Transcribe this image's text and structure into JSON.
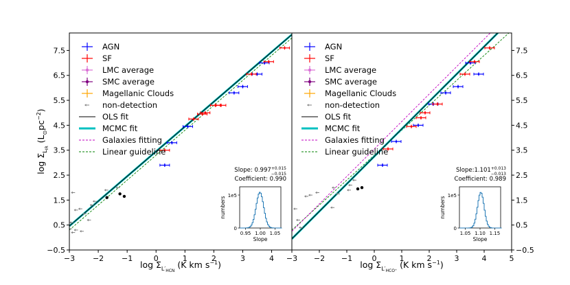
{
  "chart_data": [
    {
      "type": "scatter",
      "xlabel_main": "log Σ",
      "xlabel_sub": "L′",
      "xlabel_subsub": "HCN",
      "xlabel_unit": " (K km s",
      "xlabel_exp": "−1",
      "xlabel_close": ")",
      "ylabel_main": "log Σ",
      "ylabel_sub": "L",
      "ylabel_subsub": "IR",
      "ylabel_unit": " (L",
      "ylabel_sun": "⊙",
      "ylabel_pc": "pc",
      "ylabel_exp": "−2",
      "ylabel_close": ")",
      "xlim": [
        -3,
        4.7
      ],
      "ylim": [
        -0.5,
        8.2
      ],
      "xticks": [
        "−3",
        "−2",
        "−1",
        "0",
        "1",
        "2",
        "3",
        "4"
      ],
      "yticks": [
        "−0.5",
        "0.5",
        "1.5",
        "2.5",
        "3.5",
        "4.5",
        "5.5",
        "6.5",
        "7.5"
      ],
      "legend": [
        "AGN",
        "SF",
        "LMC average",
        "SMC average",
        "Magellanic Clouds",
        "non-detection",
        "OLS fit",
        "MCMC fit",
        "Galaxies fitting",
        "Linear guideline"
      ],
      "colors": {
        "AGN": "#0000ff",
        "SF": "#ff0000",
        "LMC": "#da70d6",
        "SMC": "#800080",
        "MC": "#ffa500",
        "nondet": "#808080",
        "ols": "#000000",
        "mcmc": "#00c0c0",
        "gal": "#c000c0",
        "guide": "#008000"
      },
      "ols": {
        "slope": 0.997,
        "intercept": 3.45
      },
      "mcmc": {
        "slope": 0.997,
        "intercept": 3.45
      },
      "guide": {
        "slope": 1.0,
        "intercept": 3.3
      },
      "agn": [
        [
          0.3,
          2.9
        ],
        [
          0.55,
          3.8
        ],
        [
          1.1,
          4.45
        ],
        [
          2.7,
          5.8
        ],
        [
          3.0,
          6.05
        ],
        [
          3.5,
          6.55
        ],
        [
          3.75,
          7.0
        ]
      ],
      "sf": [
        [
          0.3,
          3.5
        ],
        [
          1.3,
          4.75
        ],
        [
          1.6,
          4.95
        ],
        [
          1.7,
          5.0
        ],
        [
          2.05,
          5.3
        ],
        [
          2.25,
          5.3
        ],
        [
          3.3,
          6.55
        ],
        [
          3.9,
          7.05
        ],
        [
          4.45,
          7.6
        ]
      ],
      "lmc": [
        [
          -1.7,
          1.6
        ],
        [
          -1.25,
          1.75
        ]
      ],
      "smc": [
        [
          -1.1,
          1.65
        ]
      ],
      "mc": [
        [
          -1.9,
          1.9
        ],
        [
          -2.0,
          1.45
        ],
        [
          -1.15,
          1.85
        ],
        [
          -2.35,
          1.4
        ],
        [
          -1.05,
          1.85
        ],
        [
          -1.25,
          1.95
        ]
      ],
      "nondet": [
        [
          -2.85,
          1.8
        ],
        [
          -2.75,
          1.1
        ],
        [
          -2.6,
          1.15
        ],
        [
          -2.95,
          0.35
        ],
        [
          -2.75,
          0.3
        ],
        [
          -2.55,
          0.25
        ],
        [
          -2.3,
          0.7
        ],
        [
          -2.45,
          0.95
        ],
        [
          -2.2,
          1.3
        ],
        [
          -2.1,
          1.45
        ],
        [
          -1.3,
          2.0
        ],
        [
          -1.7,
          1.9
        ],
        [
          -2.9,
          0.6
        ],
        [
          -2.85,
          0.2
        ]
      ],
      "inset": {
        "slope_label": "Slope: 0.997",
        "slope_sup": "+0.015",
        "slope_sub": "−0.015",
        "coef_label": "Coefficient: 0.990",
        "ylabel": "numbers",
        "xlabel": "Slope",
        "yticks": [
          "0",
          "1e5"
        ],
        "xticks": [
          "0.95",
          "1.00",
          "1.05"
        ],
        "xlim": [
          0.93,
          1.07
        ],
        "peak": 0.997,
        "sigma": 0.015
      }
    },
    {
      "type": "scatter",
      "xlabel_main": "log Σ",
      "xlabel_sub": "L′",
      "xlabel_subsub": "HCO⁺",
      "xlabel_unit": " (K km s",
      "xlabel_exp": "−1",
      "xlabel_close": ")",
      "xlim": [
        -3,
        5
      ],
      "ylim": [
        -0.5,
        8.2
      ],
      "xticks": [
        "−3",
        "−2",
        "−1",
        "0",
        "1",
        "2",
        "3",
        "4",
        "5"
      ],
      "yticks": [
        "−0.5",
        "0.5",
        "1.5",
        "2.5",
        "3.5",
        "4.5",
        "5.5",
        "6.5",
        "7.5"
      ],
      "legend": [
        "AGN",
        "SF",
        "LMC average",
        "SMC average",
        "Magellanic Clouds",
        "non-detection",
        "OLS fit",
        "MCMC fit",
        "Galaxies fitting",
        "Linear guideline"
      ],
      "ols": {
        "slope": 1.101,
        "intercept": 3.25
      },
      "mcmc": {
        "slope": 1.101,
        "intercept": 3.25
      },
      "gal": {
        "slope": 1.101,
        "intercept": 3.55
      },
      "guide": {
        "slope": 1.0,
        "intercept": 3.3
      },
      "agn": [
        [
          0.3,
          2.9
        ],
        [
          0.8,
          3.85
        ],
        [
          1.6,
          4.5
        ],
        [
          2.15,
          5.35
        ],
        [
          2.6,
          5.8
        ],
        [
          3.05,
          6.05
        ],
        [
          3.5,
          7.0
        ],
        [
          3.8,
          6.55
        ]
      ],
      "sf": [
        [
          0.5,
          3.55
        ],
        [
          1.35,
          4.45
        ],
        [
          1.7,
          4.8
        ],
        [
          1.85,
          5.0
        ],
        [
          2.3,
          5.35
        ],
        [
          3.3,
          6.55
        ],
        [
          3.65,
          7.05
        ],
        [
          4.2,
          7.6
        ]
      ],
      "lmc": [
        [
          -0.6,
          1.95
        ]
      ],
      "smc": [
        [
          -0.45,
          2.0
        ]
      ],
      "mc": [
        [
          -2.1,
          1.8
        ],
        [
          -2.1,
          1.4
        ],
        [
          -1.55,
          1.45
        ],
        [
          -1.4,
          0.95
        ],
        [
          -0.8,
          1.5
        ],
        [
          -0.9,
          2.0
        ],
        [
          -0.65,
          1.0
        ],
        [
          -0.75,
          1.75
        ],
        [
          -0.35,
          2.15
        ],
        [
          -0.45,
          1.9
        ],
        [
          -1.85,
          1.05
        ],
        [
          -2.6,
          0.35
        ],
        [
          -2.3,
          0.15
        ],
        [
          -1.9,
          0.1
        ],
        [
          -2.8,
          0.45
        ],
        [
          -1.2,
          0.75
        ]
      ],
      "nondet": [
        [
          -2.85,
          1.15
        ],
        [
          -2.75,
          0.7
        ],
        [
          -2.65,
          0.4
        ],
        [
          -2.45,
          1.65
        ],
        [
          -2.3,
          1.7
        ],
        [
          -2.05,
          1.8
        ],
        [
          -1.5,
          1.2
        ],
        [
          -1.45,
          2.0
        ],
        [
          -1.3,
          1.75
        ],
        [
          -0.85,
          2.1
        ],
        [
          -0.7,
          2.3
        ],
        [
          -0.9,
          1.9
        ]
      ],
      "inset": {
        "slope_label": "Slope:1.101",
        "slope_sup": "+0.013",
        "slope_sub": "−0.013",
        "coef_label": "Coefficient: 0.989",
        "ylabel": "numbers",
        "xlabel": "Slope",
        "yticks": [
          "0",
          "1e5"
        ],
        "xticks": [
          "1.05",
          "1.10",
          "1.15"
        ],
        "xlim": [
          1.03,
          1.17
        ],
        "peak": 1.101,
        "sigma": 0.013
      }
    }
  ]
}
